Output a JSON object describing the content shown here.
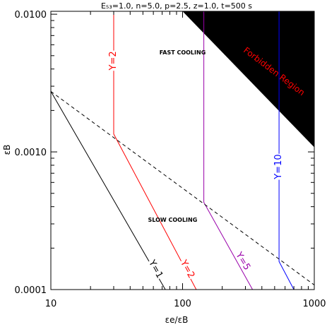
{
  "chart_data": {
    "type": "line",
    "title": "E₅₃=1.0, n=5.0, p=2.5, z=1.0, t=500 s",
    "xlabel": "εe/εB",
    "ylabel": "εB",
    "xscale": "log",
    "yscale": "log",
    "xlim": [
      10,
      1000
    ],
    "ylim": [
      0.0001,
      0.0105
    ],
    "x_ticks": [
      {
        "value": 10,
        "label": "10"
      },
      {
        "value": 100,
        "label": "100"
      },
      {
        "value": 1000,
        "label": "1000"
      }
    ],
    "y_ticks": [
      {
        "value": 0.0001,
        "label": "0.0001"
      },
      {
        "value": 0.001,
        "label": "0.0010"
      },
      {
        "value": 0.01,
        "label": "0.0100"
      }
    ],
    "series": [
      {
        "name": "Y=1",
        "color": "#000000",
        "dash": false,
        "x": [
          10,
          74
        ],
        "y": [
          0.00275,
          0.0001
        ]
      },
      {
        "name": "Y=2",
        "color": "#ff0000",
        "dash": false,
        "x": [
          30,
          30,
          127
        ],
        "y": [
          0.0105,
          0.00135,
          0.0001
        ]
      },
      {
        "name": "Y=5",
        "color": "#9900aa",
        "dash": false,
        "x": [
          145,
          145,
          340
        ],
        "y": [
          0.0105,
          0.00043,
          0.0001
        ]
      },
      {
        "name": "Y=10",
        "color": "#0000ff",
        "dash": false,
        "x": [
          540,
          540,
          700
        ],
        "y": [
          0.0105,
          0.00016,
          0.0001
        ]
      },
      {
        "name": "",
        "color": "#000000",
        "dash": true,
        "x": [
          10,
          1000
        ],
        "y": [
          0.00275,
          0.000108
        ]
      }
    ],
    "curve_labels": [
      {
        "text": "Y=2",
        "color": "#ff0000",
        "x": 30,
        "y": 0.0046,
        "rotate": -90
      },
      {
        "text": "Y=10",
        "color": "#0000ff",
        "x": 540,
        "y": 0.00078,
        "rotate": -90
      },
      {
        "text": "Y=1",
        "color": "#000000",
        "x": 62,
        "y": 0.00014,
        "rotate": 61
      },
      {
        "text": "Y=2",
        "color": "#ff0000",
        "x": 108,
        "y": 0.00014,
        "rotate": 61
      },
      {
        "text": "Y=5",
        "color": "#9900aa",
        "x": 285,
        "y": 0.00016,
        "rotate": 59
      }
    ],
    "regions": [
      {
        "text": "FAST COOLING",
        "x": 100,
        "y": 0.0051
      },
      {
        "text": "SLOW COOLING",
        "x": 84,
        "y": 0.00031
      }
    ],
    "forbidden_region": {
      "label": "Forbidden Region",
      "label_color": "#ff0000",
      "fill": "#000000",
      "boundary": {
        "x": [
          100,
          1000
        ],
        "y": [
          0.0105,
          0.00108
        ]
      }
    }
  }
}
